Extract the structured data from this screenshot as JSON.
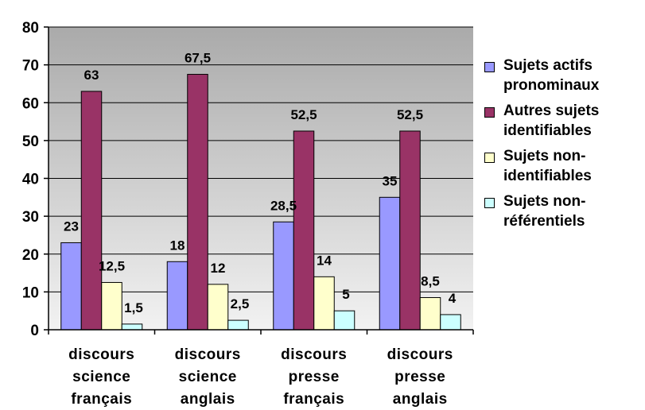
{
  "chart_data": {
    "type": "bar",
    "categories": [
      [
        "discours",
        "science",
        "français"
      ],
      [
        "discours",
        "science",
        "anglais"
      ],
      [
        "discours",
        "presse",
        "français"
      ],
      [
        "discours",
        "presse",
        "anglais"
      ]
    ],
    "series": [
      {
        "name": [
          "Sujets actifs",
          "pronominaux"
        ],
        "color": "#9999ff",
        "values": [
          23,
          18,
          28.5,
          35
        ],
        "labels": [
          "23",
          "18",
          "28,5",
          "35"
        ]
      },
      {
        "name": [
          "Autres sujets",
          "identifiables"
        ],
        "color": "#993366",
        "values": [
          63,
          67.5,
          52.5,
          52.5
        ],
        "labels": [
          "63",
          "67,5",
          "52,5",
          "52,5"
        ]
      },
      {
        "name": [
          "Sujets non-",
          "identifiables"
        ],
        "color": "#ffffcc",
        "values": [
          12.5,
          12,
          14,
          8.5
        ],
        "labels": [
          "12,5",
          "12",
          "14",
          "8,5"
        ]
      },
      {
        "name": [
          "Sujets non-",
          "référentiels"
        ],
        "color": "#ccffff",
        "values": [
          1.5,
          2.5,
          5,
          4
        ],
        "labels": [
          "1,5",
          "2,5",
          "5",
          "4"
        ]
      }
    ],
    "ylim": [
      0,
      80
    ],
    "yticks": [
      "0",
      "10",
      "20",
      "30",
      "40",
      "50",
      "60",
      "70",
      "80"
    ],
    "grid": true,
    "plot_background": "#c0c0c0",
    "legend": "right"
  }
}
